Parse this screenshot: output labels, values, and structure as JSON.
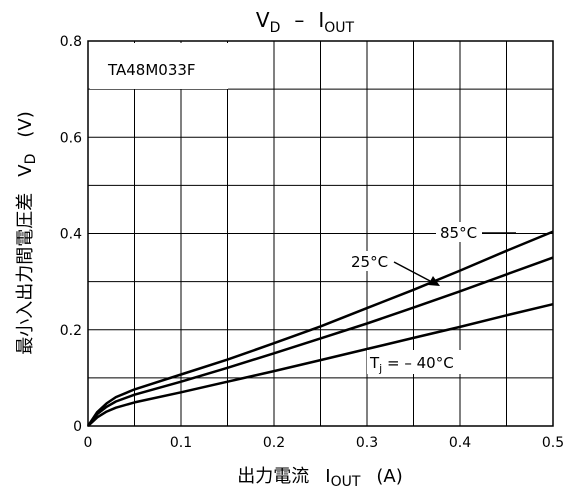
{
  "chart_data": {
    "type": "line",
    "title_main": "V",
    "title_main_sub": "D",
    "title_sep": "–",
    "title_second": "I",
    "title_second_sub": "OUT",
    "device_label": "TA48M033F",
    "xlabel_text": "出力電流",
    "xlabel_symbol": "I",
    "xlabel_sub": "OUT",
    "xlabel_unit": "(A)",
    "ylabel_text": "最小入出力間電圧差",
    "ylabel_symbol": "V",
    "ylabel_sub": "D",
    "ylabel_unit": "(V)",
    "xlim": [
      0,
      0.5
    ],
    "ylim": [
      0,
      0.8
    ],
    "x_ticks": [
      "0",
      "0.1",
      "0.2",
      "0.3",
      "0.4",
      "0.5"
    ],
    "y_ticks": [
      "0",
      "0.2",
      "0.4",
      "0.6",
      "0.8"
    ],
    "grid": true,
    "series": [
      {
        "name": "85°C",
        "x": [
          0,
          0.01,
          0.02,
          0.03,
          0.05,
          0.1,
          0.15,
          0.2,
          0.25,
          0.3,
          0.35,
          0.4,
          0.45,
          0.5
        ],
        "y": [
          0,
          0.029,
          0.047,
          0.06,
          0.076,
          0.107,
          0.138,
          0.172,
          0.207,
          0.245,
          0.283,
          0.323,
          0.364,
          0.404
        ]
      },
      {
        "name": "25°C",
        "x": [
          0,
          0.01,
          0.02,
          0.03,
          0.05,
          0.1,
          0.15,
          0.2,
          0.25,
          0.3,
          0.35,
          0.4,
          0.45,
          0.5
        ],
        "y": [
          0,
          0.025,
          0.04,
          0.051,
          0.065,
          0.092,
          0.121,
          0.151,
          0.182,
          0.213,
          0.246,
          0.28,
          0.315,
          0.35
        ]
      },
      {
        "name": "T",
        "name_sub": "j",
        "name_rest": " = – 40°C",
        "x": [
          0,
          0.01,
          0.02,
          0.03,
          0.05,
          0.1,
          0.15,
          0.2,
          0.25,
          0.3,
          0.35,
          0.4,
          0.45,
          0.5
        ],
        "y": [
          0,
          0.018,
          0.03,
          0.038,
          0.049,
          0.07,
          0.092,
          0.114,
          0.137,
          0.16,
          0.183,
          0.206,
          0.23,
          0.253
        ]
      }
    ]
  }
}
